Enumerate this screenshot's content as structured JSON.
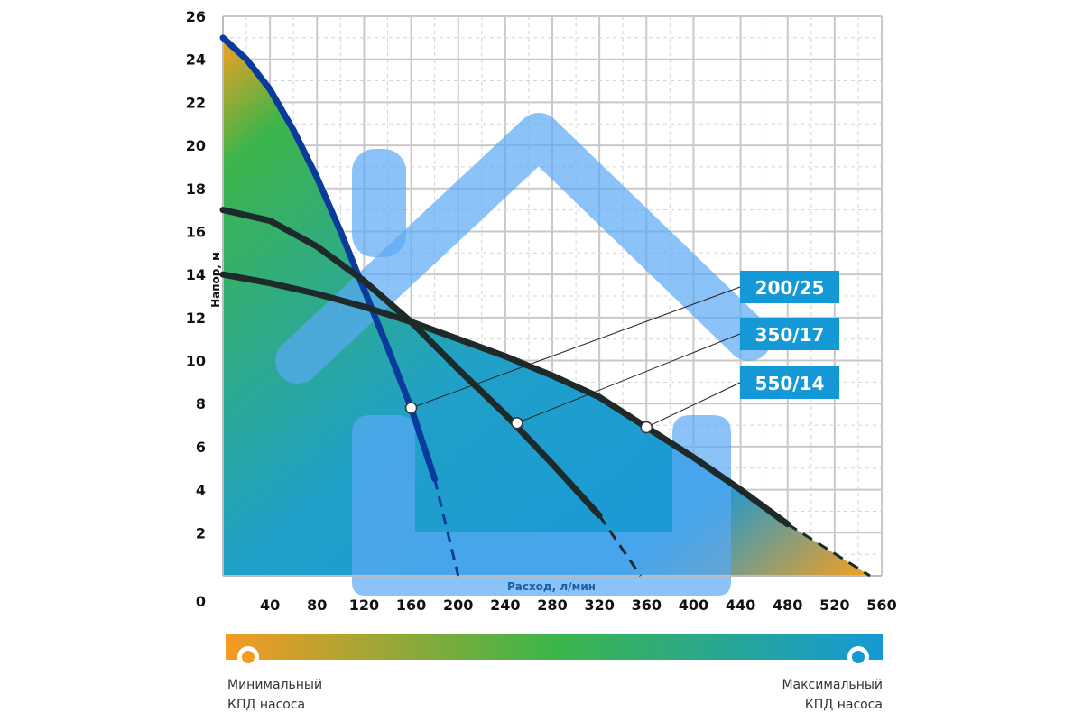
{
  "chart_data": {
    "type": "line",
    "xlabel": "Расход, л/мин",
    "ylabel": "Напор, м",
    "xlim": [
      0,
      560
    ],
    "ylim": [
      0,
      26
    ],
    "x_ticks": [
      0,
      40,
      80,
      120,
      160,
      200,
      240,
      280,
      320,
      360,
      400,
      440,
      480,
      520,
      560
    ],
    "y_ticks": [
      0,
      2,
      4,
      6,
      8,
      10,
      12,
      14,
      16,
      18,
      20,
      22,
      24,
      26
    ],
    "grid": true,
    "series": [
      {
        "name": "200/25",
        "color": "#0a3b9c",
        "x": [
          0,
          20,
          40,
          60,
          80,
          100,
          120,
          140,
          160,
          180
        ],
        "y": [
          25,
          24.0,
          22.6,
          20.7,
          18.5,
          16.0,
          13.3,
          10.6,
          7.8,
          4.5
        ],
        "dashed_to": [
          [
            180,
            4.5
          ],
          [
            200,
            0
          ]
        ],
        "marker": [
          160,
          7.8
        ]
      },
      {
        "name": "350/17",
        "color": "#1e2a2a",
        "x": [
          0,
          40,
          80,
          120,
          160,
          200,
          240,
          280,
          320
        ],
        "y": [
          17,
          16.5,
          15.3,
          13.7,
          11.8,
          9.6,
          7.5,
          5.2,
          2.8
        ],
        "dashed_to": [
          [
            320,
            2.8
          ],
          [
            355,
            0
          ]
        ],
        "marker": [
          250,
          7.1
        ]
      },
      {
        "name": "550/14",
        "color": "#1e2a2a",
        "x": [
          0,
          40,
          80,
          120,
          160,
          200,
          240,
          280,
          320,
          360,
          400,
          440,
          480
        ],
        "y": [
          14,
          13.6,
          13.1,
          12.5,
          11.8,
          11.0,
          10.2,
          9.3,
          8.3,
          6.9,
          5.5,
          4.0,
          2.4
        ],
        "dashed_to": [
          [
            480,
            2.4
          ],
          [
            550,
            0
          ]
        ],
        "marker": [
          360,
          6.9
        ]
      }
    ],
    "legend_labels": [
      "200/25",
      "350/17",
      "550/14"
    ],
    "efficiency_scale": {
      "min_label": [
        "Минимальный",
        "КПД насоса"
      ],
      "max_label": [
        "Максимальный",
        "КПД насоса"
      ],
      "min_color": "#f59a23",
      "mid_color": "#3cb54a",
      "max_color": "#1599d6"
    }
  }
}
